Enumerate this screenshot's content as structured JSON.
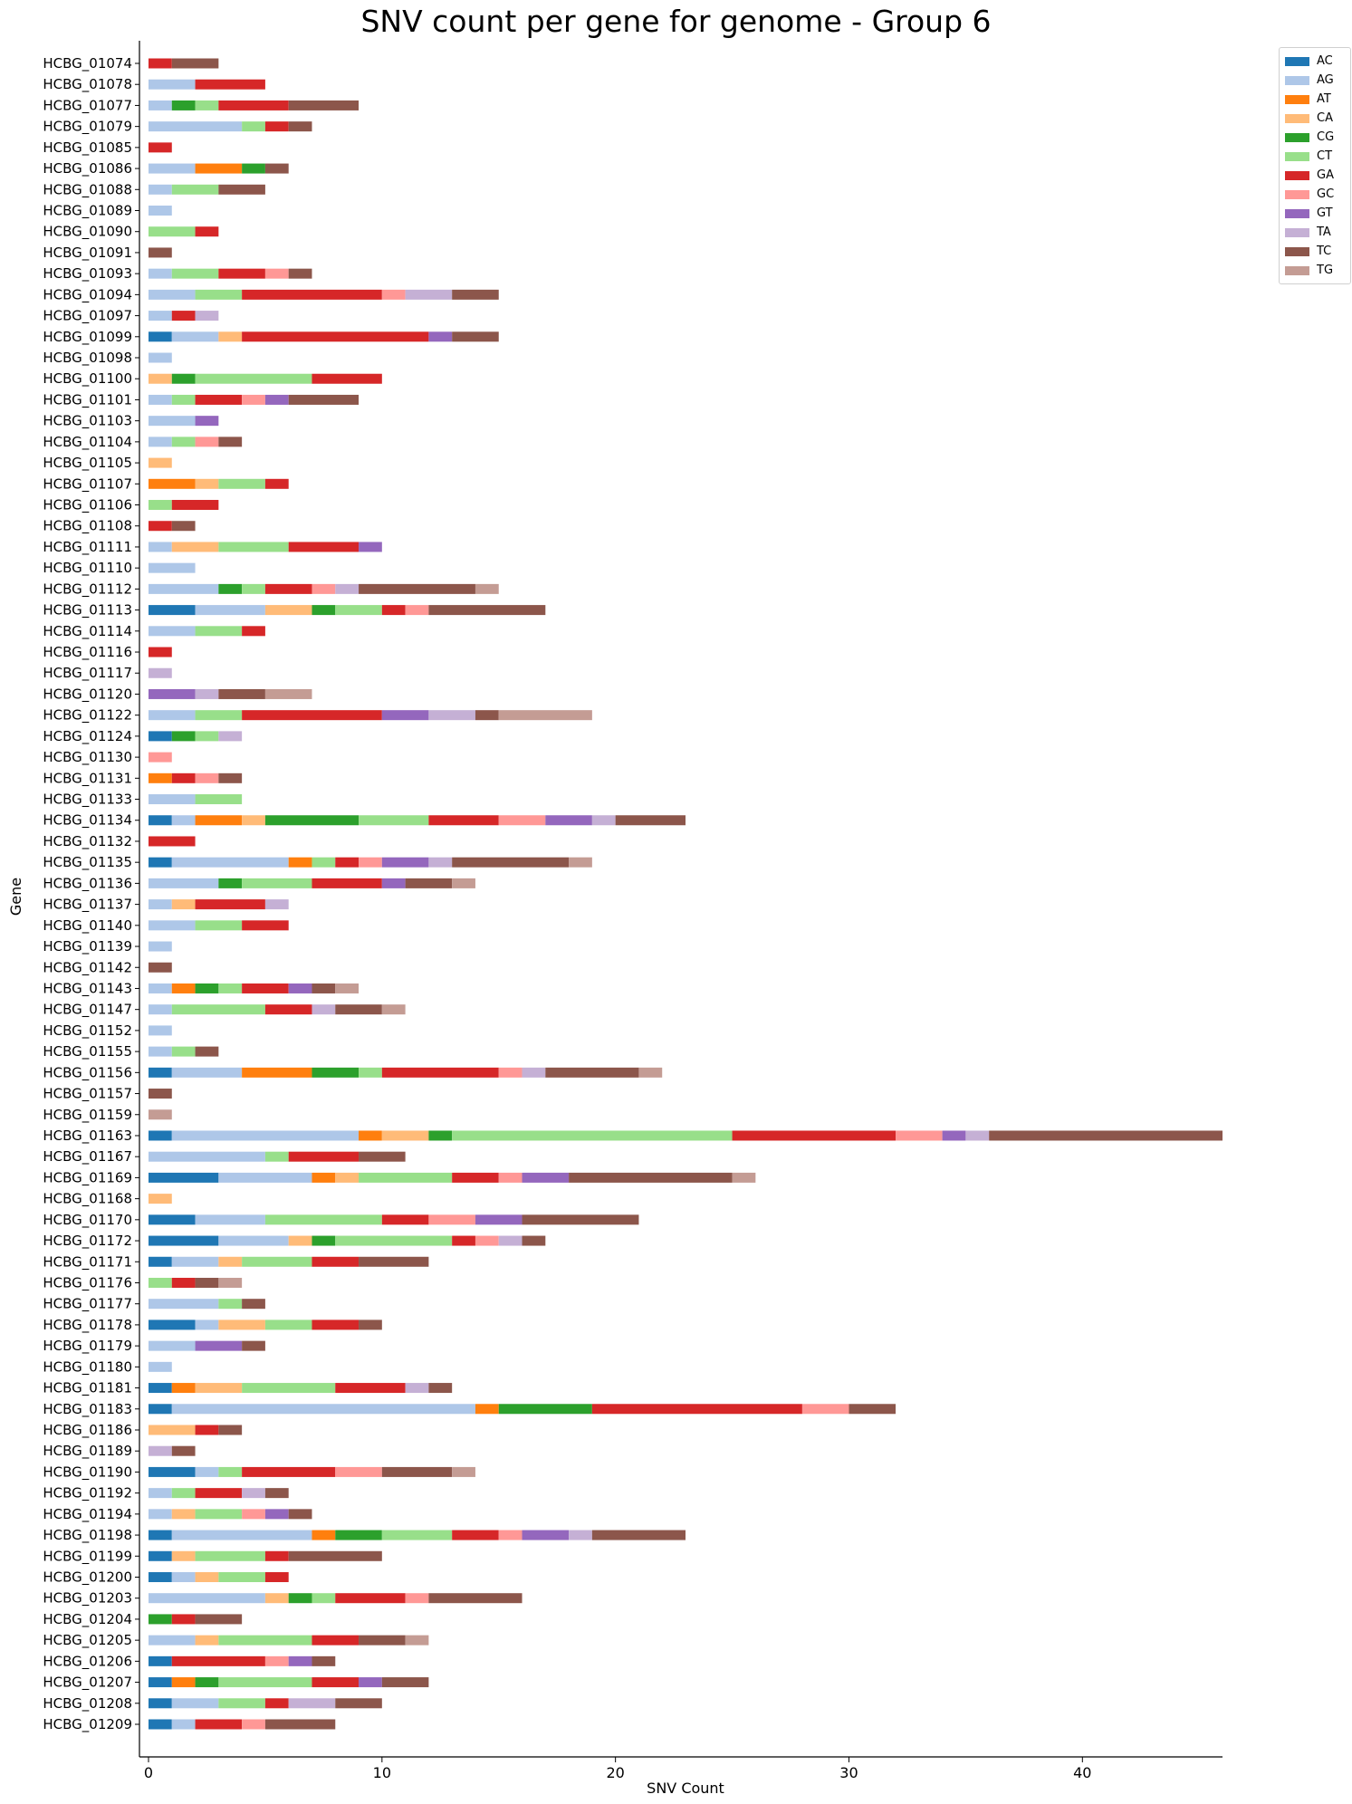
{
  "chart_data": {
    "type": "bar",
    "orientation": "horizontal",
    "stacked": true,
    "title": "SNV count per gene for genome - Group 6",
    "xlabel": "SNV Count",
    "ylabel": "Gene",
    "xlim": [
      0,
      46
    ],
    "xticks": [
      0,
      10,
      20,
      30,
      40
    ],
    "grid": false,
    "legend_position": "top-right",
    "mutation_types": [
      "AC",
      "AG",
      "AT",
      "CA",
      "CG",
      "CT",
      "GA",
      "GC",
      "GT",
      "TA",
      "TC",
      "TG"
    ],
    "colors": {
      "AC": "#1f77b4",
      "AG": "#aec7e8",
      "AT": "#ff7f0e",
      "CA": "#ffbb78",
      "CG": "#2ca02c",
      "CT": "#98df8a",
      "GA": "#d62728",
      "GC": "#ff9896",
      "GT": "#9467bd",
      "TA": "#c5b0d5",
      "TC": "#8c564b",
      "TG": "#c49c94"
    },
    "genes": [
      {
        "name": "HCBG_01074",
        "counts": {
          "GA": 1,
          "TC": 2
        }
      },
      {
        "name": "HCBG_01078",
        "counts": {
          "AG": 2,
          "GA": 3
        }
      },
      {
        "name": "HCBG_01077",
        "counts": {
          "AG": 1,
          "CG": 1,
          "CT": 1,
          "GA": 3,
          "TC": 3
        }
      },
      {
        "name": "HCBG_01079",
        "counts": {
          "AG": 4,
          "CT": 1,
          "GA": 1,
          "TC": 1
        }
      },
      {
        "name": "HCBG_01085",
        "counts": {
          "GA": 1
        }
      },
      {
        "name": "HCBG_01086",
        "counts": {
          "AG": 2,
          "AT": 2,
          "CG": 1,
          "TC": 1
        }
      },
      {
        "name": "HCBG_01088",
        "counts": {
          "AG": 1,
          "CT": 2,
          "TC": 2
        }
      },
      {
        "name": "HCBG_01089",
        "counts": {
          "AG": 1
        }
      },
      {
        "name": "HCBG_01090",
        "counts": {
          "CT": 2,
          "GA": 1
        }
      },
      {
        "name": "HCBG_01091",
        "counts": {
          "TC": 1
        }
      },
      {
        "name": "HCBG_01093",
        "counts": {
          "AG": 1,
          "CT": 2,
          "GA": 2,
          "GC": 1,
          "TC": 1
        }
      },
      {
        "name": "HCBG_01094",
        "counts": {
          "AG": 2,
          "CT": 2,
          "GA": 6,
          "GC": 1,
          "TA": 2,
          "TC": 2
        }
      },
      {
        "name": "HCBG_01097",
        "counts": {
          "AG": 1,
          "GA": 1,
          "TA": 1
        }
      },
      {
        "name": "HCBG_01099",
        "counts": {
          "AC": 1,
          "AG": 2,
          "CA": 1,
          "GA": 8,
          "GT": 1,
          "TC": 2
        }
      },
      {
        "name": "HCBG_01098",
        "counts": {
          "AG": 1
        }
      },
      {
        "name": "HCBG_01100",
        "counts": {
          "CA": 1,
          "CG": 1,
          "CT": 5,
          "GA": 3
        }
      },
      {
        "name": "HCBG_01101",
        "counts": {
          "AG": 1,
          "CT": 1,
          "GA": 2,
          "GC": 1,
          "GT": 1,
          "TC": 3
        }
      },
      {
        "name": "HCBG_01103",
        "counts": {
          "AG": 2,
          "GT": 1
        }
      },
      {
        "name": "HCBG_01104",
        "counts": {
          "AG": 1,
          "CT": 1,
          "GC": 1,
          "TC": 1
        }
      },
      {
        "name": "HCBG_01105",
        "counts": {
          "CA": 1
        }
      },
      {
        "name": "HCBG_01107",
        "counts": {
          "AT": 2,
          "CA": 1,
          "CT": 2,
          "GA": 1
        }
      },
      {
        "name": "HCBG_01106",
        "counts": {
          "CT": 1,
          "GA": 2
        }
      },
      {
        "name": "HCBG_01108",
        "counts": {
          "GA": 1,
          "TC": 1
        }
      },
      {
        "name": "HCBG_01111",
        "counts": {
          "AG": 1,
          "CA": 2,
          "CT": 3,
          "GA": 3,
          "GT": 1
        }
      },
      {
        "name": "HCBG_01110",
        "counts": {
          "AG": 2
        }
      },
      {
        "name": "HCBG_01112",
        "counts": {
          "AG": 3,
          "CG": 1,
          "CT": 1,
          "GA": 2,
          "GC": 1,
          "TA": 1,
          "TC": 5,
          "TG": 1
        }
      },
      {
        "name": "HCBG_01113",
        "counts": {
          "AC": 2,
          "AG": 3,
          "CA": 2,
          "CG": 1,
          "CT": 2,
          "GA": 1,
          "GC": 1,
          "TC": 5
        }
      },
      {
        "name": "HCBG_01114",
        "counts": {
          "AG": 2,
          "CT": 2,
          "GA": 1
        }
      },
      {
        "name": "HCBG_01116",
        "counts": {
          "GA": 1
        }
      },
      {
        "name": "HCBG_01117",
        "counts": {
          "TA": 1
        }
      },
      {
        "name": "HCBG_01120",
        "counts": {
          "GT": 2,
          "TA": 1,
          "TC": 2,
          "TG": 2
        }
      },
      {
        "name": "HCBG_01122",
        "counts": {
          "AG": 2,
          "CT": 2,
          "GA": 6,
          "GT": 2,
          "TA": 2,
          "TC": 1,
          "TG": 4
        }
      },
      {
        "name": "HCBG_01124",
        "counts": {
          "AC": 1,
          "CG": 1,
          "CT": 1,
          "TA": 1
        }
      },
      {
        "name": "HCBG_01130",
        "counts": {
          "GC": 1
        }
      },
      {
        "name": "HCBG_01131",
        "counts": {
          "AT": 1,
          "GA": 1,
          "GC": 1,
          "TC": 1
        }
      },
      {
        "name": "HCBG_01133",
        "counts": {
          "AG": 2,
          "CT": 2
        }
      },
      {
        "name": "HCBG_01134",
        "counts": {
          "AC": 1,
          "AG": 1,
          "AT": 2,
          "CA": 1,
          "CG": 4,
          "CT": 3,
          "GA": 3,
          "GC": 2,
          "GT": 2,
          "TA": 1,
          "TC": 3
        }
      },
      {
        "name": "HCBG_01132",
        "counts": {
          "GA": 2
        }
      },
      {
        "name": "HCBG_01135",
        "counts": {
          "AC": 1,
          "AG": 5,
          "AT": 1,
          "CT": 1,
          "GA": 1,
          "GC": 1,
          "GT": 2,
          "TA": 1,
          "TC": 5,
          "TG": 1
        }
      },
      {
        "name": "HCBG_01136",
        "counts": {
          "AG": 3,
          "CG": 1,
          "CT": 3,
          "GA": 3,
          "GT": 1,
          "TC": 2,
          "TG": 1
        }
      },
      {
        "name": "HCBG_01137",
        "counts": {
          "AG": 1,
          "CA": 1,
          "GA": 3,
          "TA": 1
        }
      },
      {
        "name": "HCBG_01140",
        "counts": {
          "AG": 2,
          "CT": 2,
          "GA": 2
        }
      },
      {
        "name": "HCBG_01139",
        "counts": {
          "AG": 1
        }
      },
      {
        "name": "HCBG_01142",
        "counts": {
          "TC": 1
        }
      },
      {
        "name": "HCBG_01143",
        "counts": {
          "AG": 1,
          "AT": 1,
          "CG": 1,
          "CT": 1,
          "GA": 2,
          "GT": 1,
          "TC": 1,
          "TG": 1
        }
      },
      {
        "name": "HCBG_01147",
        "counts": {
          "AG": 1,
          "CT": 4,
          "GA": 2,
          "TA": 1,
          "TC": 2,
          "TG": 1
        }
      },
      {
        "name": "HCBG_01152",
        "counts": {
          "AG": 1
        }
      },
      {
        "name": "HCBG_01155",
        "counts": {
          "AG": 1,
          "CT": 1,
          "TC": 1
        }
      },
      {
        "name": "HCBG_01156",
        "counts": {
          "AC": 1,
          "AG": 3,
          "AT": 3,
          "CG": 2,
          "CT": 1,
          "GA": 5,
          "GC": 1,
          "TA": 1,
          "TC": 4,
          "TG": 1
        }
      },
      {
        "name": "HCBG_01157",
        "counts": {
          "TC": 1
        }
      },
      {
        "name": "HCBG_01159",
        "counts": {
          "TG": 1
        }
      },
      {
        "name": "HCBG_01163",
        "counts": {
          "AC": 1,
          "AG": 8,
          "AT": 1,
          "CA": 2,
          "CG": 1,
          "CT": 12,
          "GA": 7,
          "GC": 2,
          "GT": 1,
          "TA": 1,
          "TC": 10
        }
      },
      {
        "name": "HCBG_01167",
        "counts": {
          "AG": 5,
          "CT": 1,
          "GA": 3,
          "TC": 2
        }
      },
      {
        "name": "HCBG_01169",
        "counts": {
          "AC": 3,
          "AG": 4,
          "AT": 1,
          "CA": 1,
          "CT": 4,
          "GA": 2,
          "GC": 1,
          "GT": 2,
          "TC": 7,
          "TG": 1
        }
      },
      {
        "name": "HCBG_01168",
        "counts": {
          "CA": 1
        }
      },
      {
        "name": "HCBG_01170",
        "counts": {
          "AC": 2,
          "AG": 3,
          "CT": 5,
          "GA": 2,
          "GC": 2,
          "GT": 2,
          "TC": 5
        }
      },
      {
        "name": "HCBG_01172",
        "counts": {
          "AC": 3,
          "AG": 3,
          "CA": 1,
          "CG": 1,
          "CT": 5,
          "GA": 1,
          "GC": 1,
          "TA": 1,
          "TC": 1
        }
      },
      {
        "name": "HCBG_01171",
        "counts": {
          "AC": 1,
          "AG": 2,
          "CA": 1,
          "CT": 3,
          "GA": 2,
          "TC": 3
        }
      },
      {
        "name": "HCBG_01176",
        "counts": {
          "CT": 1,
          "GA": 1,
          "TC": 1,
          "TG": 1
        }
      },
      {
        "name": "HCBG_01177",
        "counts": {
          "AG": 3,
          "CT": 1,
          "TC": 1
        }
      },
      {
        "name": "HCBG_01178",
        "counts": {
          "AC": 2,
          "AG": 1,
          "CA": 2,
          "CT": 2,
          "GA": 2,
          "TC": 1
        }
      },
      {
        "name": "HCBG_01179",
        "counts": {
          "AG": 2,
          "GT": 2,
          "TC": 1
        }
      },
      {
        "name": "HCBG_01180",
        "counts": {
          "AG": 1
        }
      },
      {
        "name": "HCBG_01181",
        "counts": {
          "AC": 1,
          "AT": 1,
          "CA": 2,
          "CT": 4,
          "GA": 3,
          "TA": 1,
          "TC": 1
        }
      },
      {
        "name": "HCBG_01183",
        "counts": {
          "AC": 1,
          "AG": 13,
          "AT": 1,
          "CG": 4,
          "GA": 9,
          "GC": 2,
          "TC": 2
        }
      },
      {
        "name": "HCBG_01186",
        "counts": {
          "CA": 2,
          "GA": 1,
          "TC": 1
        }
      },
      {
        "name": "HCBG_01189",
        "counts": {
          "TA": 1,
          "TC": 1
        }
      },
      {
        "name": "HCBG_01190",
        "counts": {
          "AC": 2,
          "AG": 1,
          "CT": 1,
          "GA": 4,
          "GC": 2,
          "TC": 3,
          "TG": 1
        }
      },
      {
        "name": "HCBG_01192",
        "counts": {
          "AG": 1,
          "CT": 1,
          "GA": 2,
          "TA": 1,
          "TC": 1
        }
      },
      {
        "name": "HCBG_01194",
        "counts": {
          "AG": 1,
          "CA": 1,
          "CT": 2,
          "GC": 1,
          "GT": 1,
          "TC": 1
        }
      },
      {
        "name": "HCBG_01198",
        "counts": {
          "AC": 1,
          "AG": 6,
          "AT": 1,
          "CG": 2,
          "CT": 3,
          "GA": 2,
          "GC": 1,
          "GT": 2,
          "TA": 1,
          "TC": 4
        }
      },
      {
        "name": "HCBG_01199",
        "counts": {
          "AC": 1,
          "CA": 1,
          "CT": 3,
          "GA": 1,
          "TC": 4
        }
      },
      {
        "name": "HCBG_01200",
        "counts": {
          "AC": 1,
          "AG": 1,
          "CA": 1,
          "CT": 2,
          "GA": 1
        }
      },
      {
        "name": "HCBG_01203",
        "counts": {
          "AG": 5,
          "CA": 1,
          "CG": 1,
          "CT": 1,
          "GA": 3,
          "GC": 1,
          "TC": 4
        }
      },
      {
        "name": "HCBG_01204",
        "counts": {
          "CG": 1,
          "GA": 1,
          "TC": 2
        }
      },
      {
        "name": "HCBG_01205",
        "counts": {
          "AG": 2,
          "CA": 1,
          "CT": 4,
          "GA": 2,
          "TC": 2,
          "TG": 1
        }
      },
      {
        "name": "HCBG_01206",
        "counts": {
          "AC": 1,
          "GA": 4,
          "GC": 1,
          "GT": 1,
          "TC": 1
        }
      },
      {
        "name": "HCBG_01207",
        "counts": {
          "AC": 1,
          "AT": 1,
          "CG": 1,
          "CT": 4,
          "GA": 2,
          "GT": 1,
          "TC": 2
        }
      },
      {
        "name": "HCBG_01208",
        "counts": {
          "AC": 1,
          "AG": 2,
          "CT": 2,
          "GA": 1,
          "TA": 2,
          "TC": 2
        }
      },
      {
        "name": "HCBG_01209",
        "counts": {
          "AC": 1,
          "AG": 1,
          "GA": 2,
          "GC": 1,
          "TC": 3
        }
      }
    ]
  }
}
